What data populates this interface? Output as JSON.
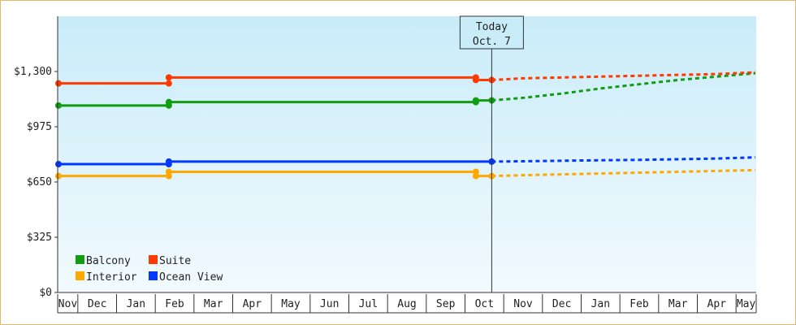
{
  "chart_data": {
    "type": "line",
    "title": "",
    "xlabel": "",
    "ylabel": "",
    "ylim": [
      0,
      1625
    ],
    "yticks": [
      {
        "value": 0,
        "label": "$0"
      },
      {
        "value": 325,
        "label": "$325"
      },
      {
        "value": 650,
        "label": "$650"
      },
      {
        "value": 975,
        "label": "$975"
      },
      {
        "value": 1300,
        "label": "$1,300"
      }
    ],
    "x_index_range": [
      0,
      18
    ],
    "categories": [
      "Nov",
      "Dec",
      "Jan",
      "Feb",
      "Mar",
      "Apr",
      "May",
      "Jun",
      "Jul",
      "Aug",
      "Sep",
      "Oct",
      "Nov",
      "Dec",
      "Jan",
      "Feb",
      "Mar",
      "Apr",
      "May"
    ],
    "grid": false,
    "legend_placement": "bottom-left",
    "today_marker": {
      "x": 11.19,
      "line1": "Today",
      "line2": "Oct. 7"
    },
    "series": [
      {
        "name": "Balcony",
        "color": "#129c12",
        "solid": [
          [
            0,
            1100
          ],
          [
            2.85,
            1100
          ],
          [
            2.85,
            1120
          ],
          [
            10.78,
            1120
          ],
          [
            10.78,
            1130
          ],
          [
            11.19,
            1130
          ]
        ],
        "forecast": [
          [
            11.19,
            1130
          ],
          [
            12,
            1145
          ],
          [
            13,
            1170
          ],
          [
            14,
            1200
          ],
          [
            15,
            1225
          ],
          [
            16,
            1250
          ],
          [
            17,
            1270
          ],
          [
            18,
            1290
          ]
        ],
        "markers": [
          [
            0,
            1100
          ],
          [
            2.85,
            1100
          ],
          [
            2.85,
            1120
          ],
          [
            10.78,
            1120
          ],
          [
            10.78,
            1130
          ],
          [
            11.19,
            1130
          ]
        ]
      },
      {
        "name": "Suite",
        "color": "#ff3a00",
        "solid": [
          [
            0,
            1230
          ],
          [
            2.85,
            1230
          ],
          [
            2.85,
            1265
          ],
          [
            10.78,
            1265
          ],
          [
            10.78,
            1250
          ],
          [
            11.19,
            1250
          ]
        ],
        "forecast": [
          [
            11.19,
            1250
          ],
          [
            12,
            1260
          ],
          [
            13,
            1265
          ],
          [
            14,
            1270
          ],
          [
            15,
            1275
          ],
          [
            16,
            1280
          ],
          [
            17,
            1285
          ],
          [
            18,
            1295
          ]
        ],
        "markers": [
          [
            0,
            1230
          ],
          [
            2.85,
            1230
          ],
          [
            2.85,
            1265
          ],
          [
            10.78,
            1265
          ],
          [
            10.78,
            1250
          ],
          [
            11.19,
            1250
          ]
        ]
      },
      {
        "name": "Interior",
        "color": "#ffa800",
        "solid": [
          [
            0,
            685
          ],
          [
            2.85,
            685
          ],
          [
            2.85,
            710
          ],
          [
            10.78,
            710
          ],
          [
            10.78,
            685
          ],
          [
            11.19,
            685
          ]
        ],
        "forecast": [
          [
            11.19,
            685
          ],
          [
            12,
            690
          ],
          [
            13,
            695
          ],
          [
            14,
            700
          ],
          [
            15,
            705
          ],
          [
            16,
            710
          ],
          [
            17,
            715
          ],
          [
            18,
            720
          ]
        ],
        "markers": [
          [
            0,
            685
          ],
          [
            2.85,
            685
          ],
          [
            2.85,
            710
          ],
          [
            10.78,
            710
          ],
          [
            10.78,
            685
          ],
          [
            11.19,
            685
          ]
        ]
      },
      {
        "name": "Ocean View",
        "color": "#0038ff",
        "solid": [
          [
            0,
            755
          ],
          [
            2.85,
            755
          ],
          [
            2.85,
            770
          ],
          [
            11.19,
            770
          ]
        ],
        "forecast": [
          [
            11.19,
            770
          ],
          [
            12,
            772
          ],
          [
            13,
            775
          ],
          [
            14,
            778
          ],
          [
            15,
            780
          ],
          [
            16,
            784
          ],
          [
            17,
            788
          ],
          [
            18,
            795
          ]
        ],
        "markers": [
          [
            0,
            755
          ],
          [
            2.85,
            755
          ],
          [
            2.85,
            770
          ],
          [
            11.19,
            770
          ]
        ]
      }
    ],
    "legend": [
      {
        "name": "Balcony",
        "color": "#129c12"
      },
      {
        "name": "Suite",
        "color": "#ff3a00"
      },
      {
        "name": "Interior",
        "color": "#ffa800"
      },
      {
        "name": "Ocean View",
        "color": "#0038ff"
      }
    ]
  }
}
